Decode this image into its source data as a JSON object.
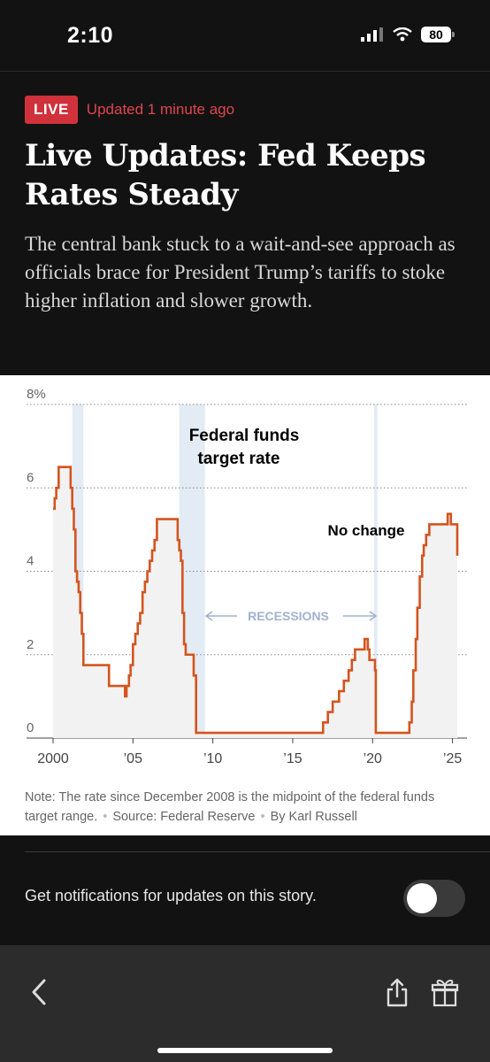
{
  "status": {
    "time": "2:10",
    "battery": "80"
  },
  "article": {
    "live_badge": "LIVE",
    "updated": "Updated 1 minute ago",
    "headline_line1": "Live Updates: Fed Keeps",
    "headline_line2": "Rates Steady",
    "summary": "The central bank stuck to a wait-and-see approach as officials brace for President Trump’s tariffs to stoke higher inflation and slower growth."
  },
  "chart": {
    "title_line1": "Federal funds",
    "title_line2": "target rate",
    "annotation": "No change",
    "recessions_label": "RECESSIONS",
    "note": "Note: The rate since December 2008 is the midpoint of the federal funds target range.",
    "source": "Source: Federal Reserve",
    "byline": "By Karl Russell"
  },
  "chart_data": {
    "type": "line",
    "title": "Federal funds target rate",
    "ylim": [
      0,
      8
    ],
    "xlim": [
      2000,
      2025.3
    ],
    "yticks": [
      {
        "v": 8,
        "label": "8%"
      },
      {
        "v": 6,
        "label": "6"
      },
      {
        "v": 4,
        "label": "4"
      },
      {
        "v": 2,
        "label": "2"
      },
      {
        "v": 0,
        "label": "0"
      }
    ],
    "xticks": [
      {
        "v": 2000,
        "label": "2000"
      },
      {
        "v": 2005,
        "label": "’05"
      },
      {
        "v": 2010,
        "label": "’10"
      },
      {
        "v": 2015,
        "label": "’15"
      },
      {
        "v": 2020,
        "label": "’20"
      },
      {
        "v": 2025,
        "label": "’25"
      }
    ],
    "recessions": [
      [
        2001.2,
        2001.9
      ],
      [
        2007.9,
        2009.5
      ],
      [
        2020.1,
        2020.3
      ]
    ],
    "series": [
      {
        "x": [
          2000.0,
          2000.1,
          2000.2,
          2000.35,
          2000.5,
          2001.0,
          2001.1,
          2001.2,
          2001.3,
          2001.4,
          2001.5,
          2001.6,
          2001.7,
          2001.8,
          2001.9,
          2002.9,
          2003.5,
          2004.5,
          2004.6,
          2004.75,
          2004.85,
          2005.0,
          2005.15,
          2005.3,
          2005.45,
          2005.6,
          2005.75,
          2005.9,
          2006.05,
          2006.2,
          2006.35,
          2006.5,
          2007.7,
          2007.8,
          2007.9,
          2008.0,
          2008.1,
          2008.2,
          2008.3,
          2008.8,
          2008.95,
          2015.9,
          2016.9,
          2017.2,
          2017.5,
          2017.9,
          2018.2,
          2018.5,
          2018.7,
          2018.9,
          2019.5,
          2019.7,
          2019.8,
          2020.15,
          2020.2,
          2022.2,
          2022.3,
          2022.45,
          2022.55,
          2022.7,
          2022.8,
          2022.95,
          2023.1,
          2023.2,
          2023.35,
          2023.55,
          2024.7,
          2024.8,
          2024.9,
          2025.3
        ],
        "y": [
          5.5,
          5.75,
          6.0,
          6.5,
          6.5,
          6.5,
          6.0,
          5.5,
          5.0,
          4.0,
          3.75,
          3.5,
          3.0,
          2.5,
          1.75,
          1.75,
          1.25,
          1.0,
          1.25,
          1.5,
          1.75,
          2.25,
          2.5,
          2.75,
          3.0,
          3.5,
          3.75,
          4.0,
          4.25,
          4.5,
          4.75,
          5.25,
          5.25,
          4.75,
          4.5,
          4.25,
          3.0,
          2.25,
          2.0,
          1.5,
          0.125,
          0.125,
          0.375,
          0.625,
          0.875,
          1.125,
          1.375,
          1.625,
          1.875,
          2.125,
          2.375,
          2.125,
          1.875,
          1.625,
          0.125,
          0.125,
          0.375,
          0.875,
          1.625,
          2.375,
          3.125,
          3.875,
          4.375,
          4.625,
          4.875,
          5.125,
          5.375,
          5.375,
          5.125,
          4.375
        ]
      }
    ]
  }
}
